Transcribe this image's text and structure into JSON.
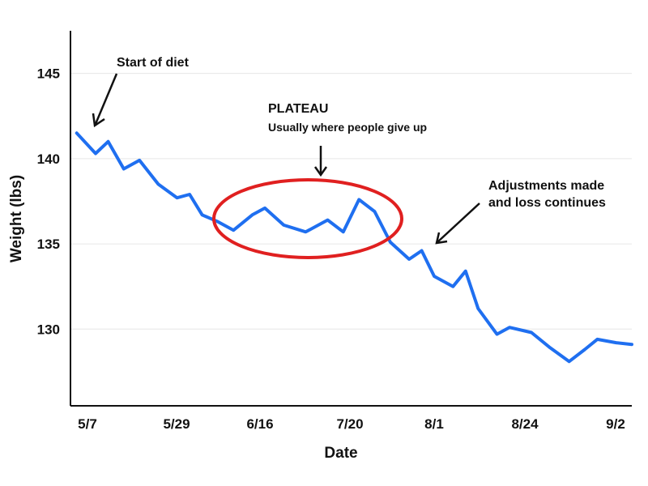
{
  "chart_data": {
    "type": "line",
    "title": "",
    "xlabel": "Date",
    "ylabel": "Weight (lbs)",
    "ylim": [
      125.5,
      147.5
    ],
    "y_ticks": [
      130,
      135,
      140,
      145
    ],
    "x_tick_labels": [
      "5/7",
      "5/29",
      "6/16",
      "7/20",
      "8/1",
      "8/24",
      "9/2"
    ],
    "grid": "horizontal",
    "colors": {
      "line": "#1f6ff0",
      "highlight": "#e02020",
      "grid": "#e6e6e6",
      "axis": "#111111"
    },
    "series": [
      {
        "x": [
          0,
          0.3,
          0.5,
          0.75,
          1,
          1.3,
          1.6,
          1.8,
          2,
          2.25,
          2.5,
          2.8,
          3,
          3.3,
          3.65,
          4,
          4.25,
          4.5,
          4.75,
          5,
          5.3,
          5.5,
          5.7,
          6,
          6.2,
          6.4,
          6.7
        ],
        "y": [
          141.5,
          140.3,
          141,
          139.4,
          139.9,
          138.5,
          137.7,
          137.9,
          136.7,
          136.3,
          135.8,
          136.7,
          137.1,
          136.1,
          135.7,
          136.4,
          135.7,
          137.6,
          136.9,
          135.1,
          134.1,
          134.6,
          133.1,
          132.5,
          133.4,
          131.2,
          129.7
        ]
      }
    ],
    "series_tail": {
      "x": [
        6.9,
        7.25,
        7.55,
        7.85,
        8.1,
        8.3,
        8.6,
        8.85
      ],
      "y": [
        130.1,
        129.8,
        128.9,
        128.1,
        128.8,
        129.4,
        129.2,
        129.1
      ]
    },
    "annotations": {
      "start": "Start of diet",
      "plateau_title": "PLATEAU",
      "plateau_sub": "Usually where people give up",
      "adjust_line1": "Adjustments made",
      "adjust_line2": "and loss continues"
    }
  }
}
